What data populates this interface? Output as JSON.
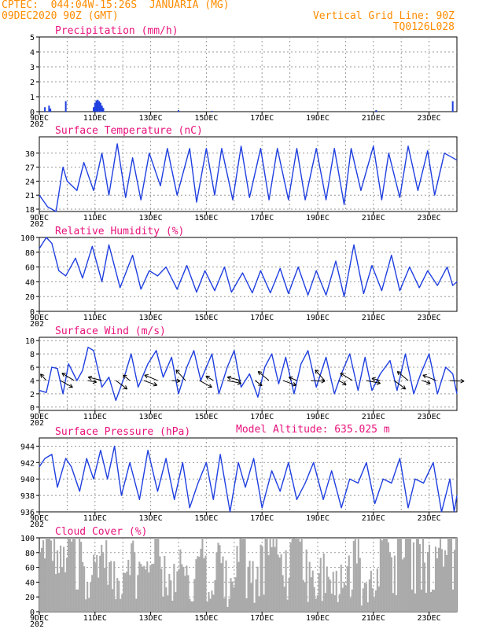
{
  "header": {
    "line1": "CPTEC:  044:04W-15:26S  JANUARIA (MG)",
    "line2": "09DEC2020 90Z (GMT)",
    "grid_note": "Vertical Grid Line: 90Z",
    "code": "TQ0126L028"
  },
  "x_tick_labels": [
    "9DEC",
    "11DEC",
    "13DEC",
    "15DEC",
    "17DEC",
    "19DEC",
    "21DEC",
    "23DEC"
  ],
  "x_subtick": "202",
  "colors": {
    "line": "#1f3fe0",
    "bar": "#1f3fe0",
    "cloud": "#aaaaaa",
    "title": "#e8127c",
    "header": "#ff8c00"
  },
  "chart_data": [
    {
      "type": "bar",
      "title": "Precipitation (mm/h)",
      "ylim": [
        0,
        5
      ],
      "yticks": [
        0,
        1,
        2,
        3,
        4,
        5
      ],
      "days": 15,
      "values": [
        [
          0.2,
          0.3
        ],
        [
          0.35,
          0.4
        ],
        [
          0.4,
          0.2
        ],
        [
          0.95,
          0.7
        ],
        [
          1.95,
          0.3
        ],
        [
          2.0,
          0.6
        ],
        [
          2.05,
          0.75
        ],
        [
          2.1,
          0.8
        ],
        [
          2.15,
          0.7
        ],
        [
          2.2,
          0.6
        ],
        [
          2.25,
          0.4
        ],
        [
          2.3,
          0.25
        ],
        [
          5.0,
          0.1
        ],
        [
          6.2,
          0.05
        ],
        [
          12.1,
          0.1
        ],
        [
          14.85,
          0.7
        ]
      ]
    },
    {
      "type": "line",
      "title": "Surface Temperature (nC)",
      "ylim": [
        17.5,
        33.5
      ],
      "yticks": [
        18,
        21,
        24,
        27,
        30
      ],
      "days": 15,
      "x": [
        0,
        0.3,
        0.6,
        0.85,
        1.0,
        1.35,
        1.6,
        1.95,
        2.25,
        2.5,
        2.8,
        3.1,
        3.35,
        3.65,
        3.95,
        4.35,
        4.6,
        4.95,
        5.4,
        5.65,
        6.0,
        6.3,
        6.55,
        6.95,
        7.25,
        7.55,
        7.95,
        8.25,
        8.55,
        8.95,
        9.25,
        9.55,
        9.95,
        10.3,
        10.6,
        10.95,
        11.2,
        11.55,
        12.0,
        12.3,
        12.55,
        12.95,
        13.25,
        13.6,
        13.95,
        14.2,
        14.55,
        14.85,
        15.0
      ],
      "values": [
        21,
        18.5,
        17.5,
        27,
        24,
        22,
        28,
        22,
        30,
        21,
        32,
        20.5,
        29,
        20,
        30,
        23,
        31,
        21,
        31,
        19.5,
        31,
        21,
        31,
        20,
        31.5,
        20.5,
        31,
        20,
        31,
        20,
        31,
        20,
        31,
        20,
        31,
        19,
        31,
        22,
        31.5,
        20,
        30,
        20.5,
        31.5,
        22,
        30.5,
        21,
        30,
        29,
        28.5
      ]
    },
    {
      "type": "line",
      "title": "Relative Humidity (%)",
      "ylim": [
        0,
        100
      ],
      "yticks": [
        0,
        20,
        40,
        60,
        80,
        100
      ],
      "days": 15,
      "x": [
        0,
        0.25,
        0.45,
        0.7,
        0.95,
        1.3,
        1.55,
        1.9,
        2.25,
        2.5,
        2.9,
        3.35,
        3.65,
        3.95,
        4.25,
        4.55,
        4.95,
        5.3,
        5.65,
        5.95,
        6.3,
        6.65,
        6.9,
        7.3,
        7.65,
        7.95,
        8.3,
        8.65,
        8.95,
        9.3,
        9.65,
        9.95,
        10.3,
        10.65,
        10.95,
        11.3,
        11.65,
        11.95,
        12.3,
        12.65,
        12.95,
        13.3,
        13.65,
        13.95,
        14.3,
        14.65,
        14.85,
        15.0
      ],
      "values": [
        85,
        100,
        92,
        55,
        48,
        72,
        45,
        88,
        40,
        90,
        32,
        76,
        30,
        55,
        48,
        60,
        30,
        62,
        26,
        55,
        28,
        60,
        26,
        52,
        25,
        55,
        25,
        58,
        24,
        60,
        22,
        55,
        22,
        68,
        20,
        90,
        24,
        62,
        28,
        76,
        28,
        60,
        32,
        55,
        35,
        60,
        35,
        40
      ]
    },
    {
      "type": "line",
      "title": "Surface Wind (m/s)",
      "ylim": [
        -0.5,
        10.5
      ],
      "yticks": [
        0,
        2,
        4,
        6,
        8,
        10
      ],
      "days": 15,
      "x": [
        0,
        0.25,
        0.45,
        0.65,
        0.85,
        1.05,
        1.35,
        1.55,
        1.75,
        1.95,
        2.25,
        2.5,
        2.75,
        3.05,
        3.3,
        3.55,
        3.9,
        4.2,
        4.45,
        4.75,
        5.0,
        5.3,
        5.55,
        5.8,
        6.2,
        6.45,
        6.75,
        7.0,
        7.25,
        7.55,
        7.85,
        8.1,
        8.35,
        8.6,
        8.85,
        9.15,
        9.4,
        9.65,
        9.95,
        10.3,
        10.6,
        10.85,
        11.15,
        11.45,
        11.7,
        11.95,
        12.25,
        12.6,
        12.85,
        13.15,
        13.45,
        13.7,
        14.0,
        14.3,
        14.6,
        14.85,
        15.0
      ],
      "values": [
        2.5,
        2.2,
        6,
        5.8,
        2,
        6.5,
        4,
        5.5,
        9,
        8.5,
        3,
        4.5,
        1,
        4.5,
        8,
        3,
        6.5,
        8.5,
        4.5,
        7.5,
        2,
        6,
        8.5,
        4,
        8,
        2,
        6,
        8.5,
        3,
        5,
        1.5,
        6,
        8,
        3.5,
        7.5,
        2,
        6.5,
        8.5,
        3,
        7.5,
        2,
        5,
        8,
        2.5,
        7.5,
        2.5,
        5,
        7,
        2.5,
        8,
        2,
        5,
        8,
        2,
        6,
        5,
        2
      ]
    },
    {
      "type": "line",
      "title": "Surface Pressure (hPa)",
      "ylim": [
        936,
        945
      ],
      "yticks": [
        936,
        938,
        940,
        942,
        944
      ],
      "days": 15,
      "x": [
        0,
        0.2,
        0.45,
        0.65,
        0.95,
        1.15,
        1.45,
        1.7,
        1.95,
        2.2,
        2.45,
        2.7,
        2.95,
        3.25,
        3.6,
        3.9,
        4.25,
        4.55,
        4.85,
        5.15,
        5.4,
        5.7,
        6.0,
        6.25,
        6.5,
        6.85,
        7.15,
        7.4,
        7.7,
        8.0,
        8.35,
        8.65,
        8.95,
        9.25,
        9.55,
        9.85,
        10.2,
        10.5,
        10.85,
        11.15,
        11.45,
        11.75,
        12.05,
        12.35,
        12.65,
        12.95,
        13.25,
        13.5,
        13.8,
        14.15,
        14.45,
        14.75,
        14.9,
        15.0
      ],
      "values": [
        941.5,
        942.5,
        943,
        939,
        942.5,
        941.5,
        938.5,
        942.5,
        940,
        943.5,
        940,
        944,
        938,
        942,
        937.5,
        943.5,
        938.5,
        942.5,
        937.5,
        942,
        936.5,
        939.5,
        942,
        937.5,
        943,
        936,
        942,
        939,
        942.5,
        936.5,
        941,
        938.5,
        942,
        937.5,
        939.5,
        942,
        937.5,
        941,
        936.5,
        940,
        939.5,
        942,
        937,
        940,
        939.5,
        942.5,
        936.5,
        940,
        939.5,
        942,
        936,
        940,
        936,
        938
      ]
    },
    {
      "type": "bar",
      "title": "Cloud Cover (%)",
      "ylim": [
        0,
        100
      ],
      "yticks": [
        0,
        20,
        40,
        60,
        80,
        100
      ],
      "days": 15,
      "values": "sampled"
    }
  ],
  "extras": {
    "model_altitude": "Model Altitude: 635.025 m"
  }
}
